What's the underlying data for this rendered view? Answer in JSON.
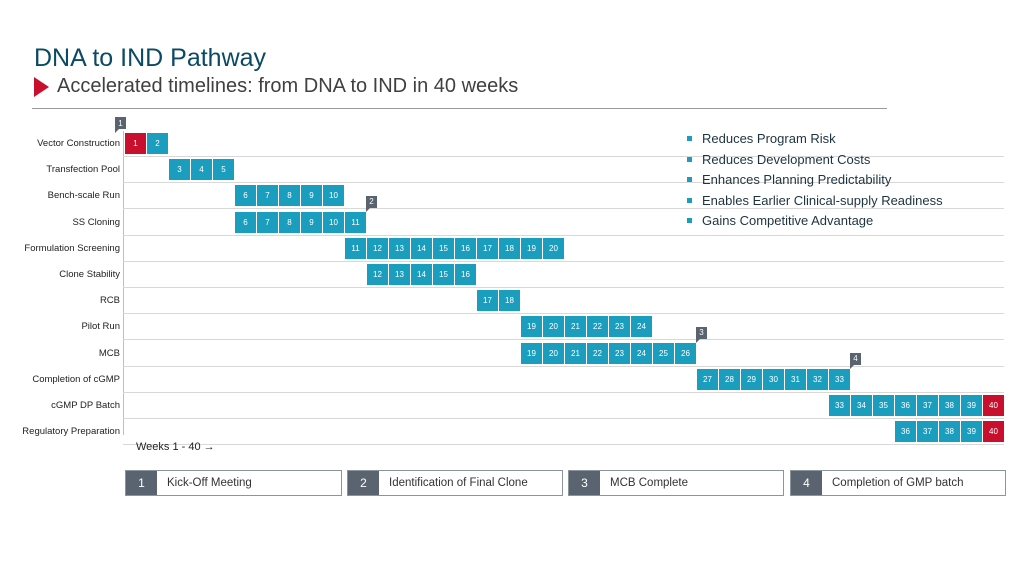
{
  "header": {
    "title": "DNA to IND Pathway",
    "subtitle": "Accelerated timelines: from DNA to IND in 40 weeks"
  },
  "benefits": [
    "Reduces Program Risk",
    "Reduces Development Costs",
    "Enhances Planning Predictability",
    "Enables Earlier Clinical-supply Readiness",
    "Gains Competitive Advantage"
  ],
  "gantt": {
    "rows": [
      {
        "label": "Vector Construction",
        "start": 1,
        "end": 2
      },
      {
        "label": "Transfection Pool",
        "start": 3,
        "end": 5
      },
      {
        "label": "Bench-scale Run",
        "start": 6,
        "end": 10
      },
      {
        "label": "SS Cloning",
        "start": 6,
        "end": 11
      },
      {
        "label": "Formulation Screening",
        "start": 11,
        "end": 20
      },
      {
        "label": "Clone Stability",
        "start": 12,
        "end": 16
      },
      {
        "label": "RCB",
        "start": 17,
        "end": 18
      },
      {
        "label": "Pilot Run",
        "start": 19,
        "end": 24
      },
      {
        "label": "MCB",
        "start": 19,
        "end": 26
      },
      {
        "label": "Completion of cGMP",
        "start": 27,
        "end": 33
      },
      {
        "label": "cGMP DP Batch",
        "start": 33,
        "end": 40
      },
      {
        "label": "Regulatory Preparation",
        "start": 36,
        "end": 40
      }
    ],
    "highlight_weeks": [
      "1",
      "40"
    ],
    "highlight_color": "#c8102e",
    "bar_color": "#1b9dbd",
    "markers": [
      {
        "id": "1",
        "week": 1,
        "row": 0
      },
      {
        "id": "2",
        "week": 11,
        "row": 3
      },
      {
        "id": "3",
        "week": 26,
        "row": 8
      },
      {
        "id": "4",
        "week": 33,
        "row": 9
      }
    ],
    "axis_label": "Weeks 1 - 40 →"
  },
  "legend": [
    {
      "num": "1",
      "text": "Kick-Off Meeting"
    },
    {
      "num": "2",
      "text": "Identification of Final Clone"
    },
    {
      "num": "3",
      "text": "MCB Complete"
    },
    {
      "num": "4",
      "text": "Completion of GMP batch"
    }
  ]
}
